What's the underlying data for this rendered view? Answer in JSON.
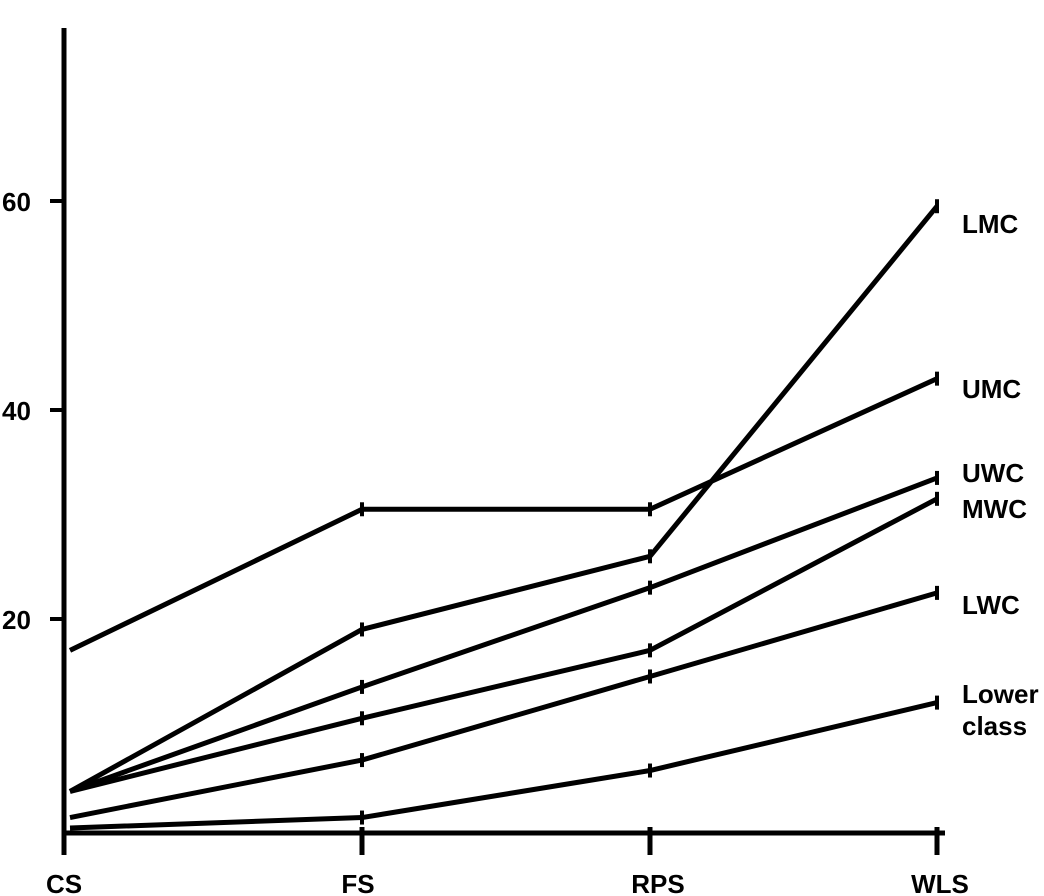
{
  "chart_data": {
    "type": "line",
    "categories": [
      "CS",
      "FS",
      "RPS",
      "WLS"
    ],
    "ylim": [
      0,
      78
    ],
    "yticks": [
      "20",
      "40",
      "60"
    ],
    "ytick_values": [
      20,
      40,
      60
    ],
    "grid": false,
    "legend": "inline labels at right end of each line",
    "line_color": "#000000",
    "series": [
      {
        "name": "LMC",
        "label_lines": [
          "LMC"
        ],
        "values": [
          3.5,
          19,
          26,
          59.5
        ]
      },
      {
        "name": "UMC",
        "label_lines": [
          "UMC"
        ],
        "values": [
          17,
          30.5,
          30.5,
          43
        ]
      },
      {
        "name": "UWC",
        "label_lines": [
          "UWC"
        ],
        "values": [
          3.5,
          13.5,
          23,
          33.5
        ]
      },
      {
        "name": "MWC",
        "label_lines": [
          "MWC"
        ],
        "values": [
          3.5,
          10.5,
          17,
          31.5
        ]
      },
      {
        "name": "LWC",
        "label_lines": [
          "LWC"
        ],
        "values": [
          1,
          6.5,
          14.5,
          22.5
        ]
      },
      {
        "name": "Lower class",
        "label_lines": [
          "Lower",
          "class"
        ],
        "values": [
          0,
          1,
          5.5,
          12
        ]
      }
    ]
  }
}
